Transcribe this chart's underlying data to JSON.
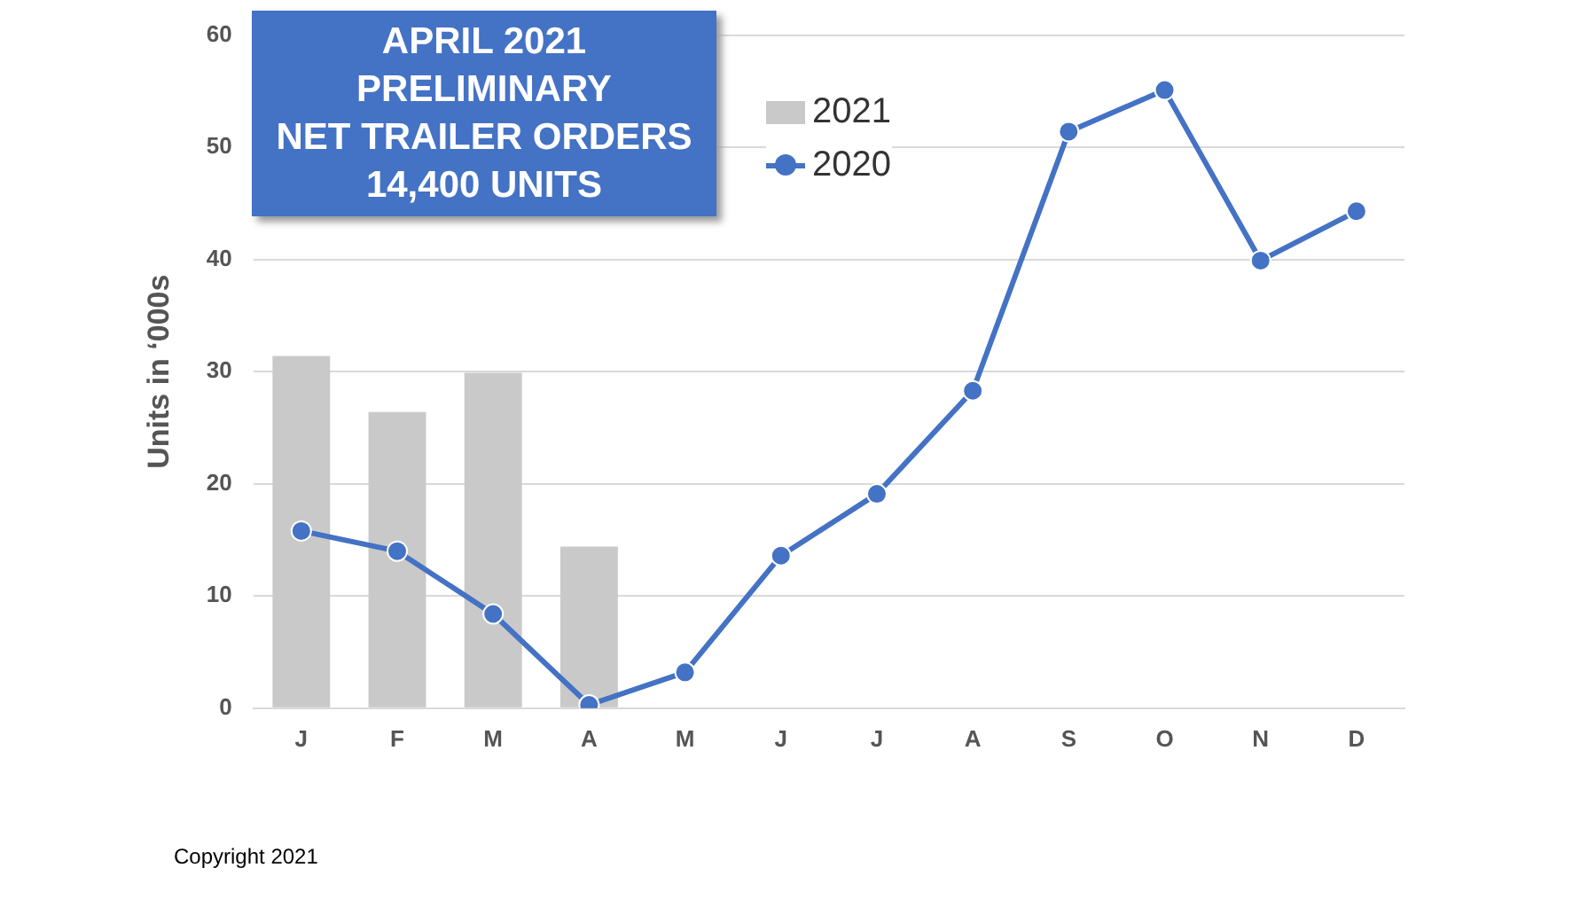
{
  "chart_data": {
    "type": "bar",
    "title": "APRIL 2021\nPRELIMINARY\nNET TRAILER ORDERS\n14,400 UNITS",
    "ylabel": "Units in ‘000s",
    "annotations": [
      "Copyright 2021"
    ],
    "categories": [
      "J",
      "F",
      "M",
      "A",
      "M",
      "J",
      "J",
      "A",
      "S",
      "O",
      "N",
      "D"
    ],
    "series": [
      {
        "name": "2021",
        "color": "#c9c9c9",
        "values": [
          31.4,
          26.4,
          29.9,
          14.4,
          null,
          null,
          null,
          null,
          null,
          null,
          null,
          null
        ]
      },
      {
        "name": "2020",
        "type": "line",
        "color": "#4472c4",
        "values": [
          15.8,
          14.0,
          8.4,
          0.3,
          3.2,
          13.6,
          19.1,
          28.3,
          51.4,
          55.1,
          39.9,
          44.3
        ]
      }
    ],
    "ylim": [
      0,
      60
    ],
    "yticks": [
      0,
      10,
      20,
      30,
      40,
      50,
      60
    ],
    "grid": "y",
    "legend": "top left",
    "marker": "circle"
  }
}
